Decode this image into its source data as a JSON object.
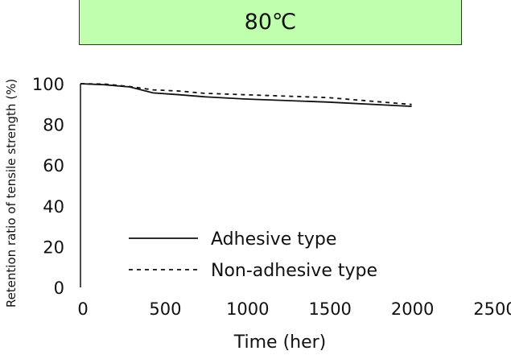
{
  "chart_data": {
    "type": "line",
    "title": "80℃",
    "xlabel": "Time (her)",
    "ylabel": "Retention ratio of tensile strength (%)",
    "xlim": [
      0,
      2500
    ],
    "ylim": [
      0,
      100
    ],
    "xticks": [
      0,
      500,
      1000,
      1500,
      2000,
      2500
    ],
    "yticks": [
      0,
      20,
      40,
      60,
      80,
      100
    ],
    "grid": false,
    "legend_position": "bottom-center",
    "series": [
      {
        "name": "Adhesive type",
        "style": "solid",
        "x": [
          0,
          150,
          300,
          440,
          600,
          750,
          1000,
          1500,
          2010
        ],
        "y": [
          100,
          99.5,
          98.4,
          95.5,
          94.6,
          93.6,
          92.5,
          91,
          88.9
        ]
      },
      {
        "name": "Non-adhesive type",
        "style": "dashed",
        "x": [
          0,
          150,
          300,
          440,
          600,
          750,
          1000,
          1500,
          2010
        ],
        "y": [
          100,
          99.8,
          98.6,
          97,
          96.4,
          95.3,
          94.6,
          93.2,
          89.8
        ]
      }
    ],
    "colors": {
      "title_bg": "#c0ffae",
      "line": "#111111"
    }
  }
}
